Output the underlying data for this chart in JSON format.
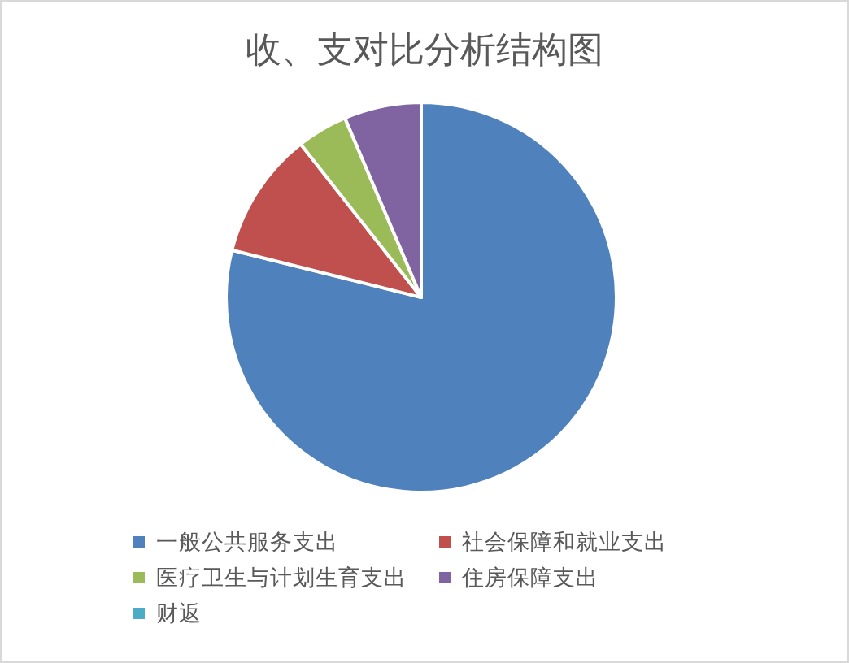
{
  "chart_data": {
    "type": "pie",
    "title": "收、支对比分析结构图",
    "categories": [
      "一般公共服务支出",
      "社会保障和就业支出",
      "医疗卫生与计划生育支出",
      "住房保障支出",
      "财返"
    ],
    "values": [
      78.9,
      10.5,
      4.2,
      6.4,
      0
    ],
    "colors": [
      "#4f81bd",
      "#c0504d",
      "#9bbb59",
      "#8064a2",
      "#4bacc6"
    ],
    "legend": "bottom"
  }
}
